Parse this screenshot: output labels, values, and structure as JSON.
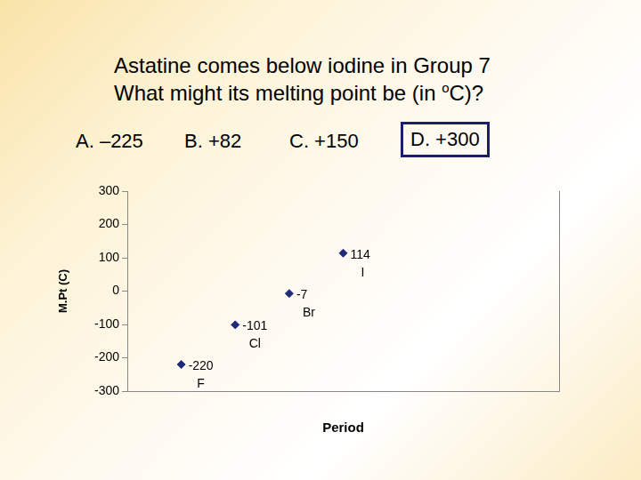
{
  "slide": {
    "title_lines": [
      [
        {
          "text": "Astatine comes below iodine in Group 7"
        }
      ],
      [
        {
          "text": "What might its melting point be (in "
        },
        {
          "text": "o",
          "sup": true
        },
        {
          "text": "C)?"
        }
      ]
    ],
    "options": [
      {
        "text": "A. –225",
        "boxed": false
      },
      {
        "text": "B. +82",
        "boxed": false
      },
      {
        "text": "C. +150",
        "boxed": false
      },
      {
        "text": "D. +300",
        "boxed": true
      }
    ]
  },
  "chart_data": {
    "type": "scatter",
    "x": [
      2,
      3,
      4,
      5
    ],
    "values": [
      -220,
      -101,
      -7,
      114
    ],
    "point_labels": [
      "F",
      "Cl",
      "Br",
      "I"
    ],
    "data_labels": true,
    "color": "#1f2a7a",
    "marker": "diamond",
    "xlabel": "Period",
    "ylabel": "M.Pt (C)",
    "xlim": [
      1,
      9
    ],
    "ylim": [
      -300,
      300
    ],
    "yticks": [
      -300,
      -200,
      -100,
      0,
      100,
      200,
      300
    ],
    "tick_labels": "y",
    "grid": false
  }
}
